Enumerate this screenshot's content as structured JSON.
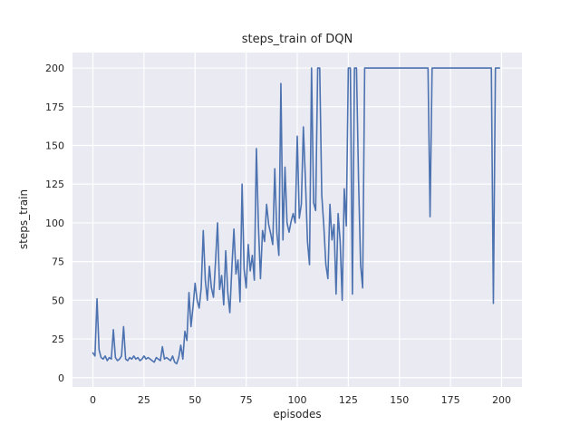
{
  "figure": {
    "background": "#ffffff",
    "plot_background": "#eaeaf2",
    "grid_color": "#ffffff",
    "line_color": "#4c72b0",
    "text_color": "#262626"
  },
  "chart_data": {
    "type": "line",
    "title": "steps_train of DQN",
    "xlabel": "episodes",
    "ylabel": "steps_train",
    "xlim": [
      -10,
      210
    ],
    "ylim": [
      -6,
      210
    ],
    "x_ticks": [
      0,
      25,
      50,
      75,
      100,
      125,
      150,
      175,
      200
    ],
    "y_ticks": [
      0,
      25,
      50,
      75,
      100,
      125,
      150,
      175,
      200
    ],
    "grid": true,
    "legend": false,
    "series": [
      {
        "name": "steps_train",
        "x_start": 0,
        "x_step": 1,
        "values": [
          16,
          14,
          51,
          18,
          13,
          12,
          14,
          11,
          13,
          12,
          31,
          13,
          11,
          12,
          14,
          33,
          12,
          11,
          13,
          12,
          14,
          12,
          13,
          11,
          12,
          14,
          12,
          13,
          12,
          11,
          10,
          13,
          12,
          11,
          20,
          12,
          13,
          12,
          11,
          14,
          10,
          9,
          13,
          21,
          12,
          30,
          24,
          55,
          33,
          46,
          61,
          50,
          45,
          58,
          95,
          63,
          50,
          72,
          58,
          52,
          75,
          100,
          57,
          66,
          47,
          82,
          55,
          42,
          71,
          96,
          67,
          76,
          49,
          125,
          70,
          58,
          86,
          69,
          79,
          63,
          148,
          98,
          64,
          95,
          88,
          112,
          99,
          93,
          86,
          135,
          94,
          79,
          190,
          89,
          136,
          100,
          94,
          101,
          106,
          100,
          156,
          103,
          112,
          162,
          128,
          88,
          73,
          200,
          113,
          108,
          200,
          200,
          118,
          98,
          73,
          64,
          112,
          89,
          99,
          54,
          106,
          88,
          50,
          122,
          98,
          200,
          200,
          54,
          200,
          200,
          128,
          73,
          58,
          200,
          200,
          200,
          200,
          200,
          200,
          200,
          200,
          200,
          200,
          200,
          200,
          200,
          200,
          200,
          200,
          200,
          200,
          200,
          200,
          200,
          200,
          200,
          200,
          200,
          200,
          200,
          200,
          200,
          200,
          200,
          200,
          104,
          200,
          200,
          200,
          200,
          200,
          200,
          200,
          200,
          200,
          200,
          200,
          200,
          200,
          200,
          200,
          200,
          200,
          200,
          200,
          200,
          200,
          200,
          200,
          200,
          200,
          200,
          200,
          200,
          200,
          200,
          48,
          200,
          200,
          200
        ]
      }
    ]
  }
}
